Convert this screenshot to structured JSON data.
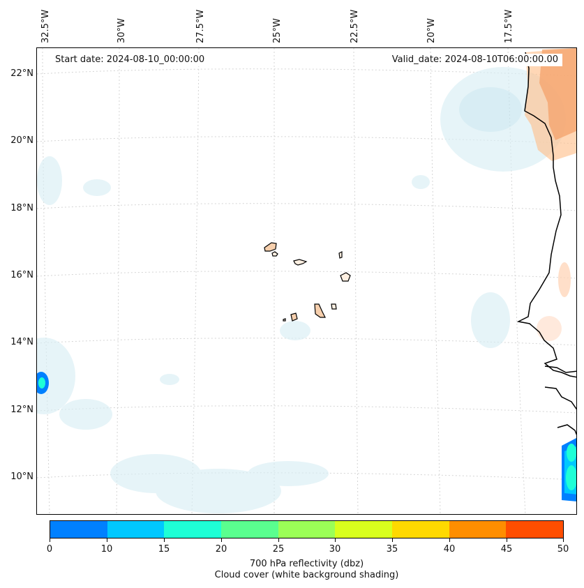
{
  "map": {
    "start_date": "Start date: 2024-08-10_00:00:00",
    "valid_date": "Valid_date: 2024-08-10T06:00:00.00",
    "longitude_labels": [
      "32.5°W",
      "30°W",
      "27.5°W",
      "25°W",
      "22.5°W",
      "20°W",
      "17.5°W"
    ],
    "latitude_labels": [
      "22°N",
      "20°N",
      "18°N",
      "16°N",
      "14°N",
      "12°N",
      "10°N"
    ],
    "colors": {
      "coast": "#000000",
      "land": "#fff0e2",
      "cloud": "#d9eef4",
      "grid": "#d4d4d4"
    }
  },
  "colorbar": {
    "ticks": [
      "0",
      "10",
      "15",
      "20",
      "25",
      "30",
      "35",
      "40",
      "45",
      "50"
    ],
    "colors": [
      "#0080ff",
      "#00c8ff",
      "#1effd6",
      "#5aff8f",
      "#9bff57",
      "#d9ff1d",
      "#ffd900",
      "#ff8e00",
      "#ff4e00"
    ],
    "label": "700 hPa reflectivity (dbz)",
    "sublabel": "Cloud cover (white background shading)"
  }
}
